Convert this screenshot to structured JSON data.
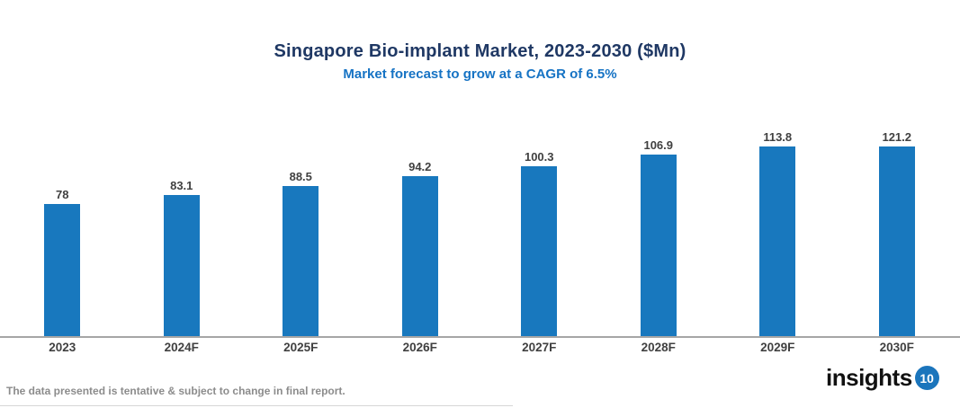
{
  "header": {
    "title": "Singapore Bio-implant Market, 2023-2030 ($Mn)",
    "subtitle": "Market forecast to grow at a CAGR of 6.5%"
  },
  "chart_data": {
    "type": "bar",
    "categories": [
      "2023",
      "2024F",
      "2025F",
      "2026F",
      "2027F",
      "2028F",
      "2029F",
      "2030F"
    ],
    "values": [
      78,
      83.1,
      88.5,
      94.2,
      100.3,
      106.9,
      113.8,
      121.2
    ],
    "value_labels": [
      "78",
      "83.1",
      "88.5",
      "94.2",
      "100.3",
      "106.9",
      "113.8",
      "121.2"
    ],
    "series": [
      {
        "name": "Singapore Bio-implant Market ($Mn)",
        "values": [
          78,
          83.1,
          88.5,
          94.2,
          100.3,
          106.9,
          113.8,
          121.2
        ]
      }
    ],
    "title": "Singapore Bio-implant Market, 2023-2030 ($Mn)",
    "subtitle": "Market forecast to grow at a CAGR of 6.5%",
    "xlabel": "",
    "ylabel": "",
    "ylim": [
      0,
      121.2
    ],
    "grid": false,
    "legend": "none",
    "bar_color": "#1878BE",
    "axis_line_color": "#A6A6A6",
    "label_color": "#404040"
  },
  "footer": {
    "disclaimer": "The data presented is tentative & subject to change in final report.",
    "logo_text": "insights",
    "logo_badge": "10"
  },
  "colors": {
    "title": "#1F3864",
    "subtitle": "#1673C4",
    "bar": "#1878BE",
    "axis": "#A6A6A6",
    "disclaimer": "#8C8C8C",
    "logo_badge_bg": "#1B75BC"
  }
}
